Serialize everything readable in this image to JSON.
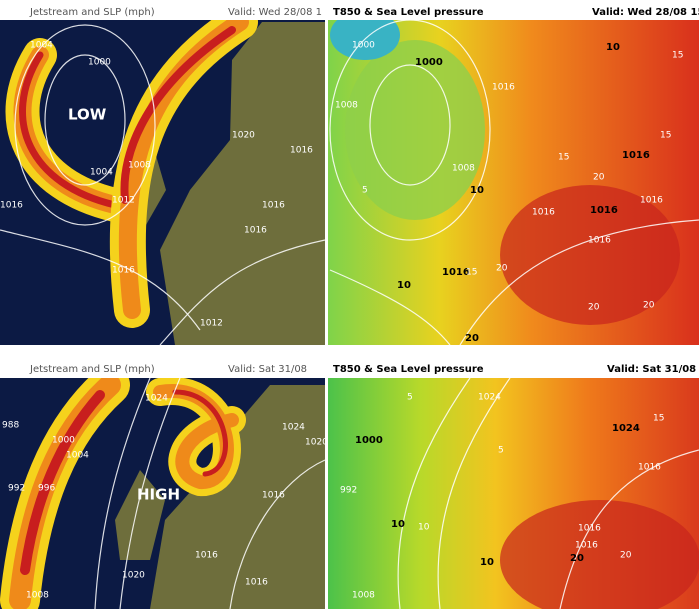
{
  "panels": [
    {
      "title": "Jetstream and SLP (mph)",
      "valid": "Valid: Wed 28/08 1",
      "feature": "LOW",
      "contours": [
        1004,
        1000,
        1008,
        1004,
        1012,
        1020,
        1016,
        1016,
        1016,
        1016,
        1012,
        1016
      ]
    },
    {
      "title": "T850 & Sea Level pressure",
      "valid": "Valid: Wed 28/08 15",
      "contours": [
        1000,
        1000,
        1008,
        1016,
        10,
        15,
        15,
        1016,
        15,
        1008,
        10,
        5,
        1016,
        1016,
        1016,
        1016,
        1016,
        15,
        20,
        10,
        20,
        20,
        20,
        20
      ]
    },
    {
      "title": "Jetstream and SLP (mph)",
      "valid": "Valid: Sat 31/08",
      "feature": "HIGH",
      "contours": [
        988,
        1000,
        1004,
        992,
        996,
        1024,
        1024,
        1020,
        1016,
        1016,
        1016,
        1020,
        1008
      ]
    },
    {
      "title": "T850 & Sea Level pressure",
      "valid": "Valid: Sat 31/08",
      "contours": [
        1024,
        1000,
        992,
        5,
        10,
        10,
        5,
        1024,
        15,
        1016,
        10,
        1016,
        1016,
        20,
        20,
        1008
      ]
    }
  ]
}
